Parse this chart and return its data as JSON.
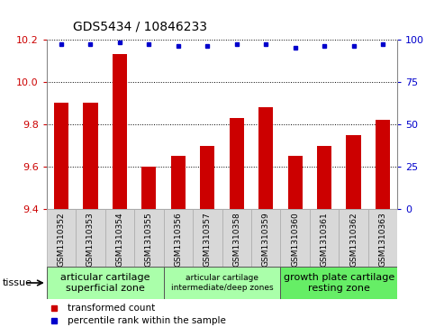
{
  "title": "GDS5434 / 10846233",
  "samples": [
    "GSM1310352",
    "GSM1310353",
    "GSM1310354",
    "GSM1310355",
    "GSM1310356",
    "GSM1310357",
    "GSM1310358",
    "GSM1310359",
    "GSM1310360",
    "GSM1310361",
    "GSM1310362",
    "GSM1310363"
  ],
  "bar_values": [
    9.9,
    9.9,
    10.13,
    9.6,
    9.65,
    9.7,
    9.83,
    9.88,
    9.65,
    9.7,
    9.75,
    9.82
  ],
  "percentile_values": [
    97,
    97,
    98,
    97,
    96,
    96,
    97,
    97,
    95,
    96,
    96,
    97
  ],
  "bar_color": "#cc0000",
  "dot_color": "#0000cc",
  "ylim_left": [
    9.4,
    10.2
  ],
  "ylim_right": [
    0,
    100
  ],
  "yticks_left": [
    9.4,
    9.6,
    9.8,
    10.0,
    10.2
  ],
  "yticks_right": [
    0,
    25,
    50,
    75,
    100
  ],
  "tissue_groups": [
    {
      "label": "articular cartilage\nsuperficial zone",
      "start": 0,
      "end": 4,
      "color": "#aaffaa",
      "fontsize": 8
    },
    {
      "label": "articular cartilage\nintermediate/deep zones",
      "start": 4,
      "end": 8,
      "color": "#aaffaa",
      "fontsize": 6.5
    },
    {
      "label": "growth plate cartilage\nresting zone",
      "start": 8,
      "end": 12,
      "color": "#66ee66",
      "fontsize": 8
    }
  ],
  "tissue_label": "tissue",
  "legend_bar_label": "transformed count",
  "legend_dot_label": "percentile rank within the sample",
  "bg_color": "#ffffff",
  "tick_label_color_left": "#cc0000",
  "tick_label_color_right": "#0000cc",
  "grid_color": "#000000",
  "bar_width": 0.5,
  "cell_color": "#d8d8d8",
  "cell_edge_color": "#aaaaaa"
}
